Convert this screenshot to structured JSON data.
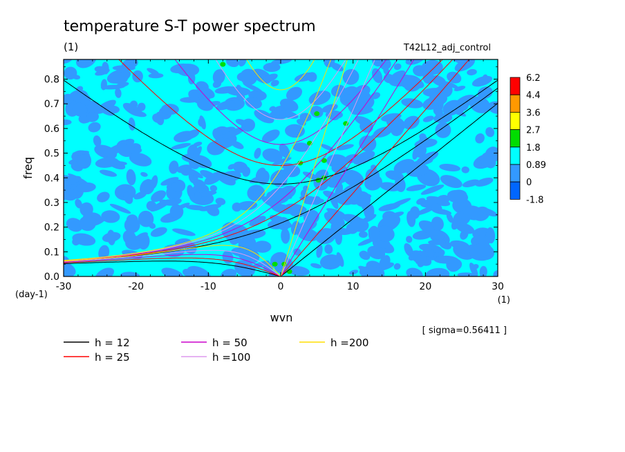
{
  "chart_data": {
    "type": "heatmap",
    "title": "temperature S-T power spectrum",
    "subtitle_left": "(1)",
    "subtitle_right": "T42L12_adj_control",
    "xlabel": "wvn",
    "ylabel": "freq",
    "x_unit": "(1)",
    "y_unit": "(day-1)",
    "annotation": "[ sigma=0.56411 ]",
    "xlim": [
      -30,
      30
    ],
    "ylim": [
      0,
      0.88
    ],
    "x_ticks": [
      -30,
      -20,
      -10,
      0,
      10,
      20,
      30
    ],
    "x_tick_labels": [
      "-30",
      "-20",
      "-10",
      "0",
      "10",
      "20",
      "30"
    ],
    "y_ticks": [
      0,
      0.1,
      0.2,
      0.3,
      0.4,
      0.5,
      0.6,
      0.7,
      0.8
    ],
    "y_tick_labels": [
      "0.0",
      "0.1",
      "0.2",
      "0.3",
      "0.4",
      "0.5",
      "0.6",
      "0.7",
      "0.8"
    ],
    "colorbar": {
      "levels": [
        "6.2",
        "4.4",
        "3.6",
        "2.7",
        "1.8",
        "0.89",
        "0",
        "-1.8"
      ],
      "colors": [
        "#ff0000",
        "#ff9900",
        "#ffff00",
        "#00dd00",
        "#00ffff",
        "#3399ff",
        "#0066ff"
      ]
    },
    "background_level_color": "#00ffff",
    "low_level_color": "#3399ff",
    "patch_color": "#00dd00",
    "dispersion_curves": [
      {
        "label": "h = 12",
        "h": 12,
        "color": "#000000"
      },
      {
        "label": "h = 25",
        "h": 25,
        "color": "#ff0000"
      },
      {
        "label": "h = 50",
        "h": 50,
        "color": "#cc00cc"
      },
      {
        "label": "h =100",
        "h": 100,
        "color": "#dd99ee"
      },
      {
        "label": "h =200",
        "h": 200,
        "color": "#ffdd00"
      }
    ]
  }
}
